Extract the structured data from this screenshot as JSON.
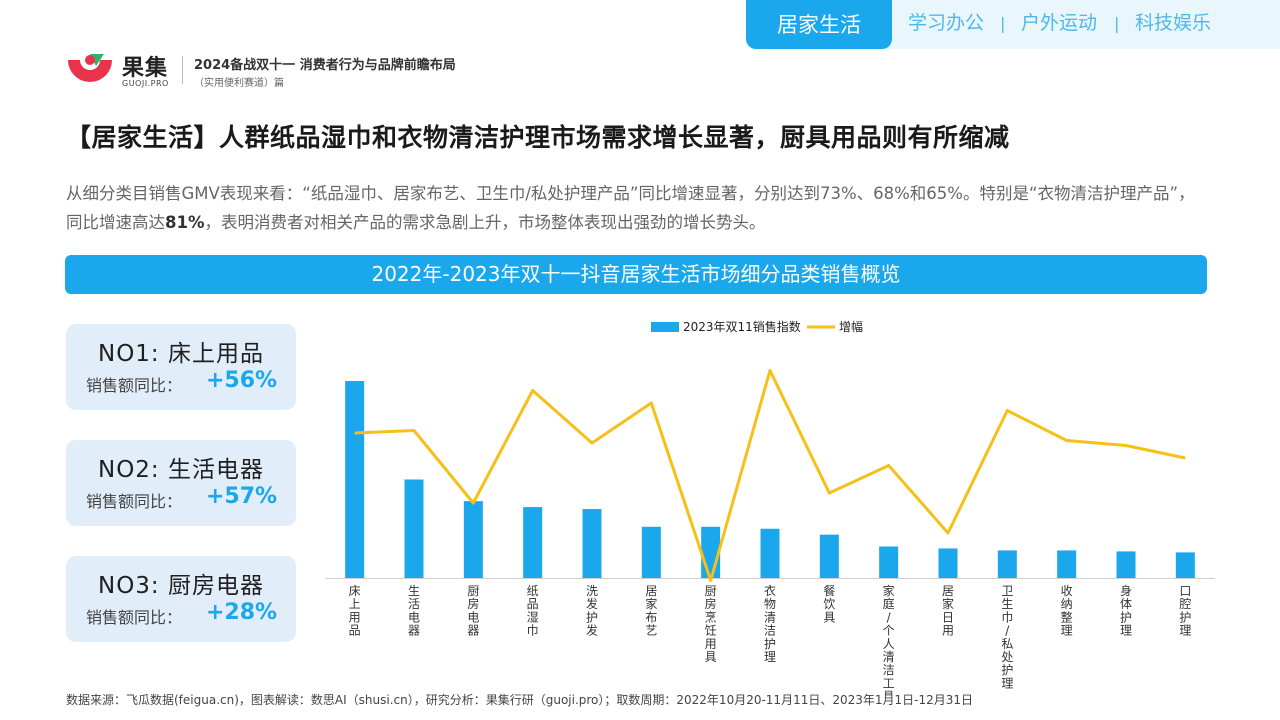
{
  "tabs": {
    "active": "居家生活",
    "items": [
      "学习办公",
      "户外运动",
      "科技娱乐"
    ],
    "separator": "|"
  },
  "header": {
    "logo_name": "果集",
    "logo_sub": "GUOJI.PRO",
    "report_title": "2024备战双十一 消费者行为与品牌前瞻布局",
    "report_sub": "（实用便利赛道）篇"
  },
  "page_title": "【居家生活】人群纸品湿巾和衣物清洁护理市场需求增长显著，厨具用品则有所缩减",
  "summary": {
    "part1": "从细分类目销售GMV表现来看：“纸品湿巾、居家布艺、卫生巾/私处护理产品”同比增速显著，分别达到73%、68%和65%。特别是“衣物清洁护理产品”，同比增速高达",
    "highlight": "81%",
    "part2": "，表明消费者对相关产品的需求急剧上升，市场整体表现出强劲的增长势头。"
  },
  "banner_title": "2022年-2023年双十一抖音居家生活市场细分品类销售概览",
  "cards": [
    {
      "rank": "NO1:  床上用品",
      "yoy_label": "销售额同比：",
      "yoy_value": "+56%"
    },
    {
      "rank": "NO2:  生活电器",
      "yoy_label": "销售额同比：",
      "yoy_value": "+57%"
    },
    {
      "rank": "NO3:  厨房电器",
      "yoy_label": "销售额同比：",
      "yoy_value": "+28%"
    }
  ],
  "chart_data": {
    "type": "bar",
    "title": "",
    "categories": [
      "床上用品",
      "生活电器",
      "厨房电器",
      "纸品湿巾",
      "洗发护发",
      "居家布艺",
      "厨房烹饪用具",
      "衣物清洁护理",
      "餐饮具",
      "家庭/个人清洁工具",
      "居家日用",
      "卫生巾/私处护理",
      "收纳整理",
      "身体护理",
      "口腔护理"
    ],
    "series": [
      {
        "name": "2023年双11销售指数",
        "kind": "bar",
        "axis": "left",
        "values": [
          100,
          50,
          39,
          36,
          35,
          26,
          26,
          25,
          22,
          16,
          15,
          14,
          14,
          13.5,
          13
        ]
      },
      {
        "name": "增幅",
        "kind": "line",
        "axis": "right",
        "values": [
          56,
          57,
          28,
          73,
          52,
          68,
          -3,
          81,
          32,
          43,
          16,
          65,
          53,
          51,
          46
        ]
      }
    ],
    "ylim_left": [
      0,
      100
    ],
    "ylim_right": [
      0,
      90
    ],
    "legend": "top-center",
    "grid": false,
    "colors": {
      "bar": "#1aa7ec",
      "line": "#f5c018"
    }
  },
  "source": "数据来源：飞瓜数据(feigua.cn)，图表解读：数思AI（shusi.cn），研究分析：果集行研（guoji.pro）；取数周期：2022年10月20-11月11日、2023年1月1日-12月31日",
  "colors": {
    "accent": "#1aa7ec",
    "card_bg": "#e1edf9",
    "line": "#f5c018"
  }
}
